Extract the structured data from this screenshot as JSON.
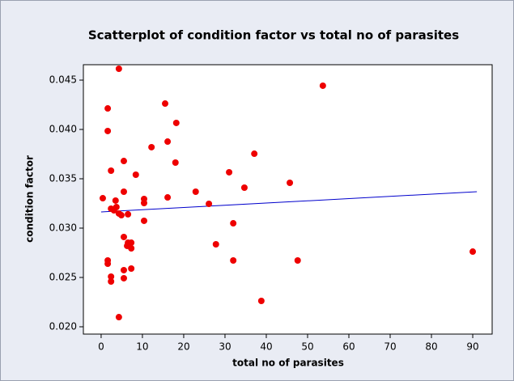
{
  "chart_data": {
    "type": "scatter",
    "title": "Scatterplot of condition factor vs total no of parasites",
    "x_label": "total no of parasites",
    "y_label": "condition factor",
    "xlim": [
      -4.3,
      94.7
    ],
    "ylim": [
      0.01926,
      0.04656
    ],
    "xticks": [
      0,
      10,
      20,
      30,
      40,
      50,
      60,
      70,
      80,
      90
    ],
    "yticks": [
      {
        "value": 0.02,
        "label": "0.020"
      },
      {
        "value": 0.025,
        "label": "0.025"
      },
      {
        "value": 0.03,
        "label": "0.030"
      },
      {
        "value": 0.035,
        "label": "0.035"
      },
      {
        "value": 0.04,
        "label": "0.040"
      },
      {
        "value": 0.045,
        "label": "0.045"
      }
    ],
    "series": [
      {
        "color": "#ee0000",
        "x": [
          0.4,
          1.6,
          4.3,
          15.5,
          1.6,
          18.2,
          12.2,
          16.1,
          37.1,
          18.0,
          5.5,
          2.4,
          8.4,
          5.5,
          31.0,
          34.7,
          45.7,
          22.9,
          16.1,
          10.4,
          10.4,
          3.5,
          26.1,
          2.4,
          3.1,
          3.7,
          4.3,
          4.9,
          6.5,
          10.4,
          32.0,
          5.5,
          6.5,
          7.3,
          6.3,
          7.3,
          27.8,
          1.6,
          1.6,
          32.0,
          47.6,
          90.0,
          7.3,
          5.5,
          2.4,
          2.4,
          5.5,
          38.8,
          4.3,
          53.7
        ],
        "values": [
          0.03303,
          0.04213,
          0.04615,
          0.04262,
          0.03984,
          0.04066,
          0.0382,
          0.03877,
          0.03754,
          0.03664,
          0.0368,
          0.03582,
          0.03541,
          0.03369,
          0.03566,
          0.0341,
          0.03459,
          0.03369,
          0.03311,
          0.03295,
          0.03254,
          0.03279,
          0.03246,
          0.03197,
          0.0318,
          0.03213,
          0.03148,
          0.03131,
          0.0314,
          0.03074,
          0.03049,
          0.0291,
          0.02852,
          0.02852,
          0.0282,
          0.02795,
          0.02836,
          0.02672,
          0.02639,
          0.02672,
          0.02672,
          0.02762,
          0.0259,
          0.02574,
          0.02508,
          0.02459,
          0.02492,
          0.02262,
          0.02098,
          0.04443
        ]
      }
    ],
    "fit": {
      "color": "#0000cc",
      "x": [
        0,
        91
      ],
      "values": [
        0.03164,
        0.03369
      ]
    }
  }
}
